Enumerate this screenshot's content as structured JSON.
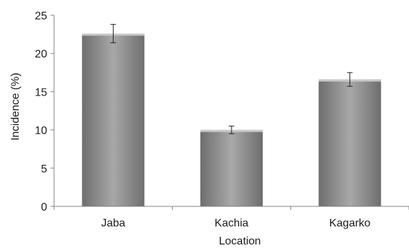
{
  "chart_data": {
    "type": "bar",
    "title": "",
    "xlabel": "Location",
    "ylabel": "Incidence (%)",
    "categories": [
      "Jaba",
      "Kachia",
      "Kagarko"
    ],
    "values": [
      22.6,
      10.0,
      16.6
    ],
    "error": [
      1.2,
      0.5,
      0.9
    ],
    "ylim": [
      0,
      25
    ],
    "yticks": [
      0,
      5,
      10,
      15,
      20,
      25
    ],
    "grid": false,
    "legend": "none",
    "colors": {
      "bar_dark": "#6e6e6e",
      "bar_mid": "#a8a8a8",
      "bar_top": "#c8c8c8",
      "axis": "#7f7f7f",
      "error_bar": "#1a1a1a"
    }
  }
}
